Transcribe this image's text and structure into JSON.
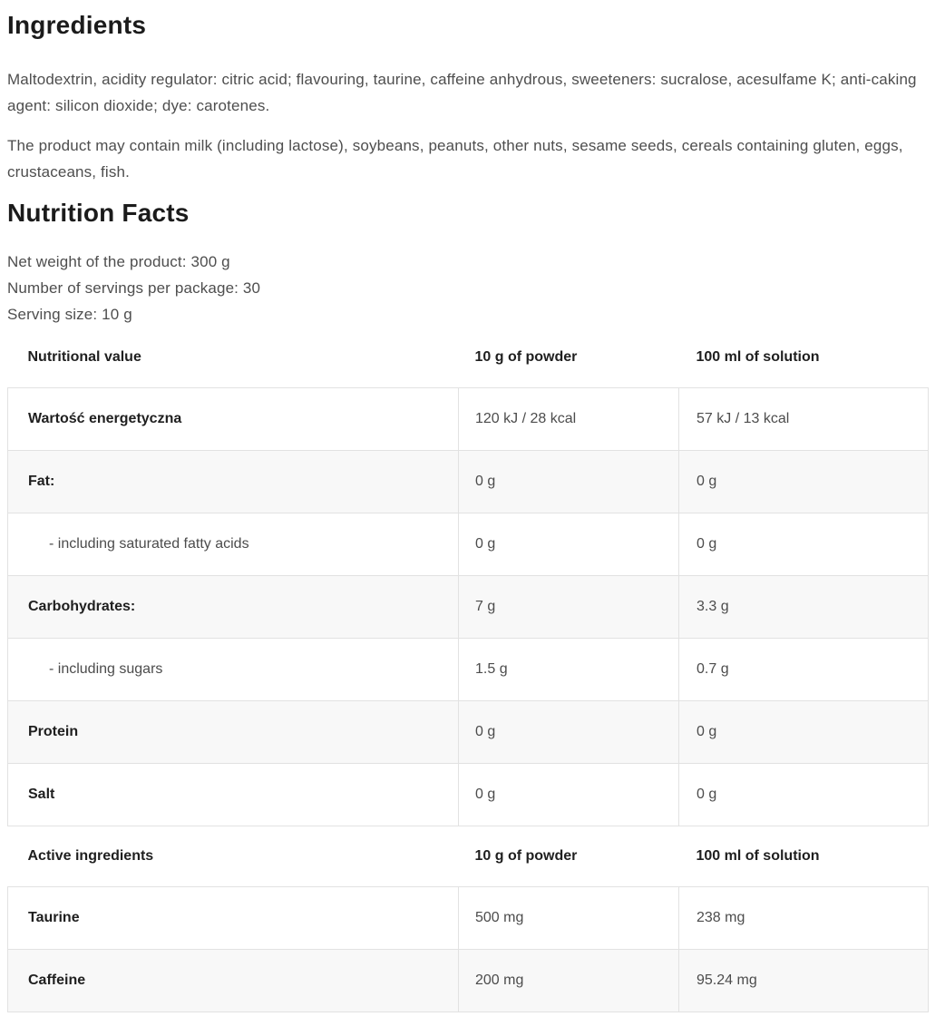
{
  "colors": {
    "background": "#ffffff",
    "heading_text": "#1b1b1b",
    "body_text": "#4e4e4e",
    "label_text": "#1f1f1f",
    "row_stripe": "#f8f8f8",
    "table_border": "#e2e2e2"
  },
  "ingredients": {
    "title": "Ingredients",
    "paragraphs": [
      "Maltodextrin, acidity regulator: citric acid; flavouring, taurine, caffeine anhydrous, sweeteners: sucralose, acesulfame K; anti-caking agent: silicon dioxide; dye: carotenes.",
      "The product may contain milk (including lactose), soybeans, peanuts, other nuts, sesame seeds, cereals containing gluten, eggs, crustaceans, fish."
    ]
  },
  "nutrition": {
    "title": "Nutrition Facts",
    "meta": [
      "Net weight of the product: 300 g",
      "Number of servings per package: 30",
      "Serving size: 10 g"
    ],
    "table": {
      "nutritional_header": {
        "label": "Nutritional value",
        "powder": "10 g of powder",
        "solution": "100 ml of solution"
      },
      "nutritional_rows": [
        {
          "label": "Wartość energetyczna",
          "powder": "120 kJ / 28 kcal",
          "solution": "57 kJ / 13 kcal"
        },
        {
          "label": "Fat:",
          "powder": "0 g",
          "solution": "0 g"
        },
        {
          "label": "- including saturated fatty acids",
          "powder": "0 g",
          "solution": "0 g"
        },
        {
          "label": "Carbohydrates:",
          "powder": "7 g",
          "solution": "3.3 g"
        },
        {
          "label": "- including sugars",
          "powder": "1.5 g",
          "solution": "0.7 g"
        },
        {
          "label": "Protein",
          "powder": "0 g",
          "solution": "0 g"
        },
        {
          "label": "Salt",
          "powder": "0 g",
          "solution": "0 g"
        }
      ],
      "active_header": {
        "label": "Active ingredients",
        "powder": "10 g of powder",
        "solution": "100 ml of solution"
      },
      "active_rows": [
        {
          "label": "Taurine",
          "powder": "500 mg",
          "solution": "238 mg"
        },
        {
          "label": "Caffeine",
          "powder": "200 mg",
          "solution": "95.24 mg"
        }
      ]
    }
  }
}
